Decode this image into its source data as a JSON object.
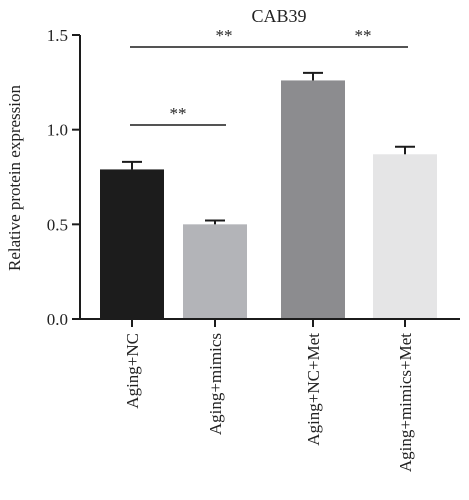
{
  "chart_data": {
    "type": "bar",
    "title": "CAB39",
    "ylabel": "Relative protein expression",
    "xlabel": "",
    "ylim": [
      0,
      1.5
    ],
    "yticks": [
      "0.0",
      "0.5",
      "1.0",
      "1.5"
    ],
    "categories": [
      "Aging+NC",
      "Aging+mimics",
      "Aging+NC+Met",
      "Aging+mimics+Met"
    ],
    "values": [
      0.79,
      0.5,
      1.26,
      0.87
    ],
    "errors": [
      0.04,
      0.02,
      0.04,
      0.04
    ],
    "colors": [
      "#1c1c1c",
      "#b3b4b8",
      "#8c8c8f",
      "#e5e5e6"
    ],
    "significance": [
      {
        "from": 0,
        "to": 1,
        "label": "**"
      },
      {
        "from": 0,
        "to": 2,
        "label": "**"
      },
      {
        "from": 2,
        "to": 3,
        "label": "**"
      }
    ]
  }
}
